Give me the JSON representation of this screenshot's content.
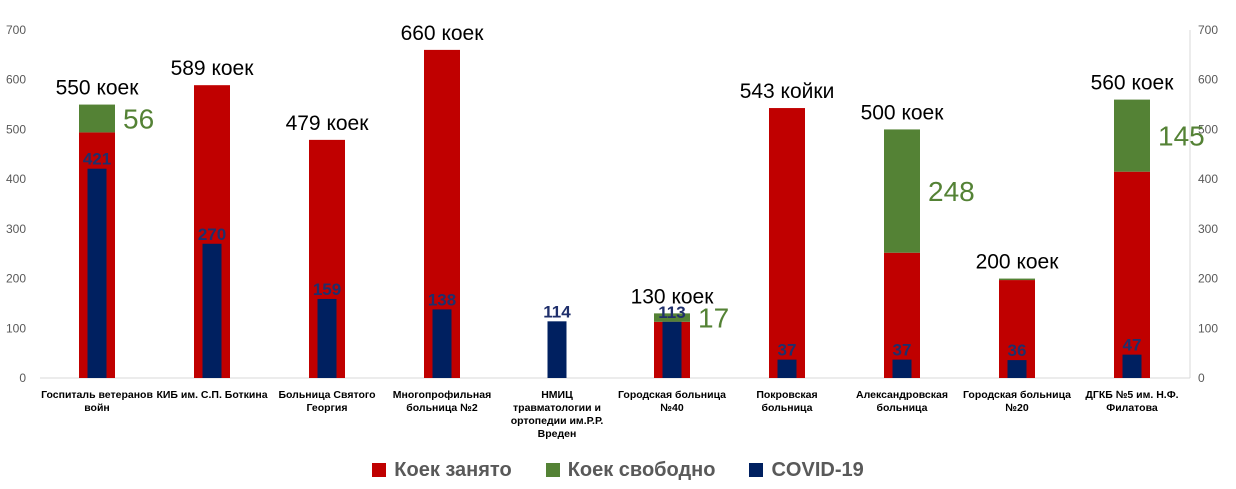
{
  "chart_data": {
    "type": "bar",
    "stacked": true,
    "categories": [
      "Госпиталь ветеранов войн",
      "КИБ им. С.П. Боткина",
      "Больница Святого Георгия",
      "Многопрофильная больница №2",
      "НМИЦ травматологии и ортопедии им.Р.Р. Вреден",
      "Городская больница №40",
      "Покровская больница",
      "Александровская больница",
      "Городская больница №20",
      "ДГКБ №5 им. Н.Ф. Филатова"
    ],
    "category_label_lines": [
      [
        "Госпиталь ветеранов",
        "войн"
      ],
      [
        "КИБ  им. С.П. Боткина"
      ],
      [
        "Больница Святого",
        "Георгия"
      ],
      [
        "Многопрофильная",
        "больница №2"
      ],
      [
        "НМИЦ",
        "травматологии и",
        "ортопедии им.Р.Р.",
        "Вреден"
      ],
      [
        "Городская  больница",
        "№40"
      ],
      [
        "Покровская",
        "больница"
      ],
      [
        "Александровская",
        "больница"
      ],
      [
        "Городская  больница",
        "№20"
      ],
      [
        "ДГКБ №5 им. Н.Ф.",
        "Филатова"
      ]
    ],
    "series": [
      {
        "name": "Коек занято",
        "color": "#c00000",
        "values": [
          494,
          589,
          479,
          660,
          0,
          113,
          543,
          252,
          197,
          415
        ]
      },
      {
        "name": "Коек свободно",
        "color": "#548235",
        "values": [
          56,
          0,
          0,
          0,
          0,
          17,
          0,
          248,
          3,
          145
        ]
      },
      {
        "name": "COVID-19",
        "color": "#002060",
        "values": [
          421,
          270,
          159,
          138,
          114,
          113,
          37,
          37,
          36,
          47
        ]
      }
    ],
    "totals_labels": [
      "550 коек",
      "589 коек",
      "479 коек",
      "660 коек",
      "",
      "130 коек",
      "543 койки",
      "500 коек",
      "200 коек",
      "560 коек"
    ],
    "free_labels": [
      "56",
      "",
      "",
      "",
      "",
      "17",
      "",
      "248",
      "",
      "145"
    ],
    "covid_labels": [
      "421",
      "270",
      "159",
      "138",
      "114",
      "113",
      "37",
      "37",
      "36",
      "47"
    ],
    "ylim": [
      0,
      700
    ],
    "yticks": [
      "0",
      "100",
      "200",
      "300",
      "400",
      "500",
      "600",
      "700"
    ],
    "secondary_axis": true,
    "legend_position": "bottom",
    "grid": false
  }
}
